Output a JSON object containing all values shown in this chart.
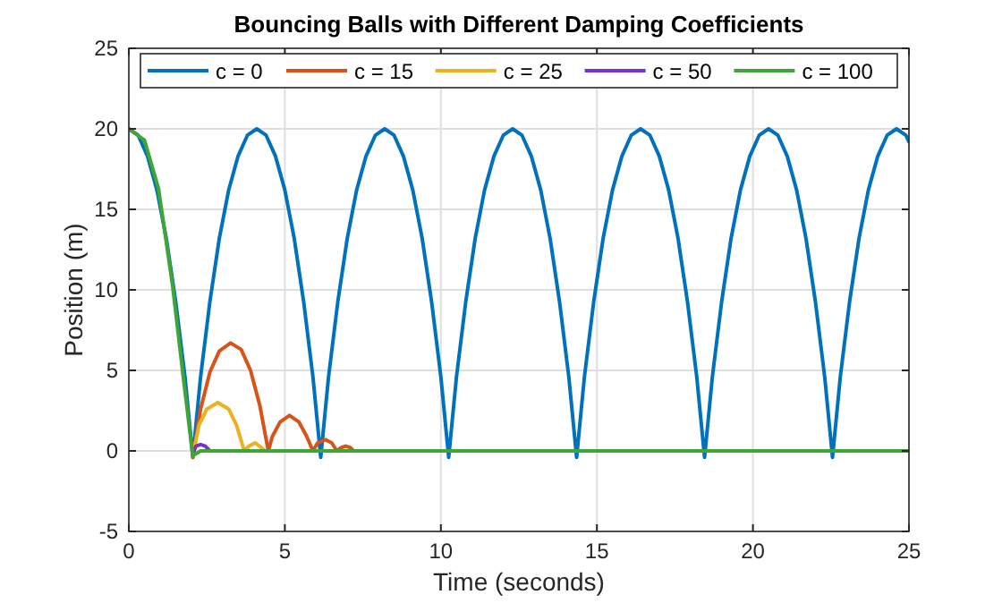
{
  "chart_data": {
    "type": "line",
    "title": "Bouncing Balls with Different Damping Coefficients",
    "xlabel": "Time (seconds)",
    "ylabel": "Position (m)",
    "xlim": [
      0,
      25
    ],
    "xticks": [
      0,
      5,
      10,
      15,
      20,
      25
    ],
    "ylim": [
      -5,
      25
    ],
    "yticks": [
      -5,
      0,
      5,
      10,
      15,
      20,
      25
    ],
    "grid": true,
    "legend": "top",
    "marker": "none",
    "line_style": "solid",
    "series": [
      {
        "name": "c = 0",
        "color": "#0072bd",
        "x": [
          0,
          0.3,
          0.6,
          0.9,
          1.2,
          1.5,
          1.8,
          2.05,
          2.3,
          2.6,
          2.9,
          3.2,
          3.5,
          3.8,
          4.1,
          4.4,
          4.7,
          5.0,
          5.3,
          5.6,
          5.9,
          6.15,
          6.4,
          6.7,
          7.0,
          7.3,
          7.6,
          7.9,
          8.2,
          8.5,
          8.8,
          9.1,
          9.4,
          9.7,
          10.0,
          10.25,
          10.5,
          10.8,
          11.1,
          11.4,
          11.7,
          12.0,
          12.3,
          12.6,
          12.9,
          13.2,
          13.5,
          13.8,
          14.1,
          14.35,
          14.6,
          14.9,
          15.2,
          15.5,
          15.8,
          16.1,
          16.4,
          16.7,
          17.0,
          17.3,
          17.6,
          17.9,
          18.2,
          18.45,
          18.7,
          19.0,
          19.3,
          19.6,
          19.9,
          20.2,
          20.5,
          20.8,
          21.1,
          21.4,
          21.7,
          22.0,
          22.3,
          22.55,
          22.8,
          23.1,
          23.4,
          23.7,
          24.0,
          24.3,
          24.6,
          24.9,
          25
        ],
        "values": [
          20,
          19.6,
          18.3,
          16.2,
          13.2,
          9.3,
          4.6,
          -0.4,
          4.6,
          9.3,
          13.2,
          16.2,
          18.3,
          19.6,
          20,
          19.6,
          18.3,
          16.2,
          13.2,
          9.3,
          4.6,
          -0.4,
          4.6,
          9.3,
          13.2,
          16.2,
          18.3,
          19.6,
          20,
          19.6,
          18.3,
          16.2,
          13.2,
          9.3,
          4.6,
          -0.4,
          4.6,
          9.3,
          13.2,
          16.2,
          18.3,
          19.6,
          20,
          19.6,
          18.3,
          16.2,
          13.2,
          9.3,
          4.6,
          -0.4,
          4.6,
          9.3,
          13.2,
          16.2,
          18.3,
          19.6,
          20,
          19.6,
          18.3,
          16.2,
          13.2,
          9.3,
          4.6,
          -0.4,
          4.6,
          9.3,
          13.2,
          16.2,
          18.3,
          19.6,
          20,
          19.6,
          18.3,
          16.2,
          13.2,
          9.3,
          4.6,
          -0.4,
          4.6,
          9.3,
          13.2,
          16.2,
          18.3,
          19.6,
          20,
          19.6,
          19.2
        ]
      },
      {
        "name": "c = 15",
        "color": "#d95319",
        "x": [
          2.05,
          2.3,
          2.6,
          2.9,
          3.26,
          3.6,
          3.9,
          4.2,
          4.47,
          4.6,
          4.85,
          5.15,
          5.45,
          5.7,
          5.9,
          6.05,
          6.3,
          6.5,
          6.67,
          6.8,
          6.95,
          7.1,
          7.2
        ],
        "values": [
          -0.4,
          2.6,
          4.9,
          6.2,
          6.7,
          6.3,
          5.0,
          2.8,
          0,
          0.9,
          1.8,
          2.2,
          1.8,
          0.9,
          0,
          0.5,
          0.7,
          0.5,
          0,
          0.2,
          0.3,
          0.2,
          0
        ]
      },
      {
        "name": "c = 25",
        "color": "#edb120",
        "x": [
          2.05,
          2.25,
          2.5,
          2.85,
          3.2,
          3.45,
          3.7,
          3.85,
          4.05,
          4.25,
          4.35
        ],
        "values": [
          -0.3,
          1.6,
          2.6,
          3.0,
          2.6,
          1.6,
          0,
          0.3,
          0.5,
          0.2,
          0
        ]
      },
      {
        "name": "c = 50",
        "color": "#7e2fd0",
        "x": [
          2.05,
          2.15,
          2.3,
          2.45,
          2.6
        ],
        "values": [
          -0.2,
          0.3,
          0.4,
          0.3,
          0
        ]
      },
      {
        "name": "c = 100",
        "color": "#3fa535",
        "x": [
          0,
          0.5,
          0.95,
          1.4,
          1.75,
          2.05,
          2.3,
          25
        ],
        "values": [
          20,
          19.3,
          16.3,
          10.3,
          4.5,
          -0.3,
          0,
          0
        ]
      }
    ]
  }
}
